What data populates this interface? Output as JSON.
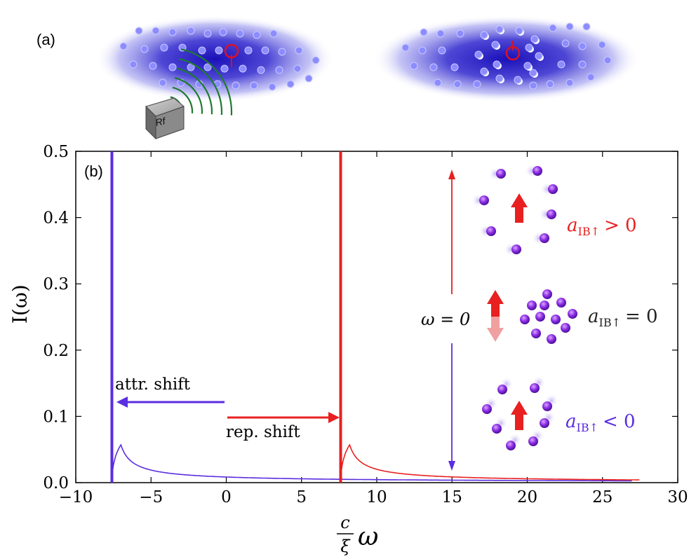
{
  "panel_a": {
    "label": "(a)",
    "rf_label": "Rf",
    "colors": {
      "cloud": "#2a22c8",
      "atom": "#8c8cff",
      "impurity": "#dd1122",
      "wave": "#1f7a2e"
    }
  },
  "chart_data": {
    "type": "line",
    "panel_label": "(b)",
    "xlabel": "c/ξ ω",
    "xlabel_parts": {
      "numerator": "c",
      "denominator": "ξ",
      "var": "ω"
    },
    "ylabel": "I(ω)",
    "xlim": [
      -10,
      30
    ],
    "ylim": [
      0,
      0.5
    ],
    "x_ticks": [
      -10,
      -5,
      0,
      5,
      10,
      15,
      20,
      25,
      30
    ],
    "x_tick_labels": [
      "−10",
      "−5",
      "0",
      "5",
      "10",
      "15",
      "20",
      "25",
      "30"
    ],
    "y_ticks": [
      0.0,
      0.1,
      0.2,
      0.3,
      0.4,
      0.5
    ],
    "y_tick_labels": [
      "0.0",
      "0.1",
      "0.2",
      "0.3",
      "0.4",
      "0.5"
    ],
    "grid": false,
    "series": [
      {
        "color": "#5a2de0",
        "edge": -7.6,
        "peak_x": -7.0,
        "peak_y": 0.057,
        "x_end": 27.0,
        "x": [
          -7.6,
          -7.3,
          -7.0,
          -6.0,
          -5.0,
          -3.0,
          0.0,
          5.0,
          10.0,
          15.0,
          20.0,
          27.0
        ],
        "y": [
          0.0,
          0.045,
          0.057,
          0.047,
          0.038,
          0.028,
          0.019,
          0.012,
          0.009,
          0.007,
          0.006,
          0.004
        ]
      },
      {
        "color": "#e82020",
        "edge": 7.6,
        "peak_x": 8.2,
        "peak_y": 0.057,
        "x_end": 27.5,
        "x": [
          7.6,
          7.9,
          8.2,
          9.0,
          10.0,
          12.0,
          15.0,
          20.0,
          25.0,
          27.5
        ],
        "y": [
          0.0,
          0.045,
          0.057,
          0.05,
          0.043,
          0.032,
          0.022,
          0.013,
          0.008,
          0.006
        ]
      }
    ],
    "annotations": {
      "attr_shift": "attr. shift",
      "rep_shift": "rep. shift",
      "omega_zero": "ω = 0",
      "a_pos": "a",
      "a_sub": "IB↑",
      "rel_pos": "> 0",
      "rel_zero": "= 0",
      "rel_neg": "< 0"
    }
  }
}
